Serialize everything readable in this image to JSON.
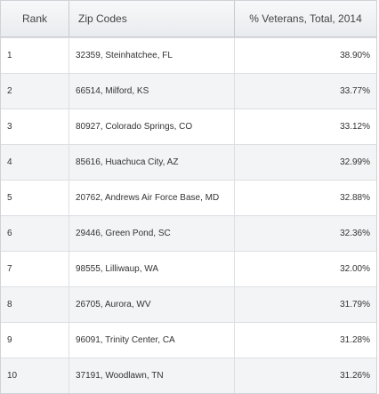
{
  "table": {
    "headers": {
      "rank": "Rank",
      "zip": "Zip Codes",
      "veterans": "% Veterans, Total, 2014"
    },
    "rows": [
      {
        "rank": "1",
        "zip": "32359, Steinhatchee, FL",
        "veterans": "38.90%"
      },
      {
        "rank": "2",
        "zip": "66514, Milford, KS",
        "veterans": "33.77%"
      },
      {
        "rank": "3",
        "zip": "80927, Colorado Springs, CO",
        "veterans": "33.12%"
      },
      {
        "rank": "4",
        "zip": "85616, Huachuca City, AZ",
        "veterans": "32.99%"
      },
      {
        "rank": "5",
        "zip": "20762, Andrews Air Force Base, MD",
        "veterans": "32.88%"
      },
      {
        "rank": "6",
        "zip": "29446, Green Pond, SC",
        "veterans": "32.36%"
      },
      {
        "rank": "7",
        "zip": "98555, Lilliwaup, WA",
        "veterans": "32.00%"
      },
      {
        "rank": "8",
        "zip": "26705, Aurora, WV",
        "veterans": "31.79%"
      },
      {
        "rank": "9",
        "zip": "96091, Trinity Center, CA",
        "veterans": "31.28%"
      },
      {
        "rank": "10",
        "zip": "37191, Woodlawn, TN",
        "veterans": "31.26%"
      }
    ]
  }
}
